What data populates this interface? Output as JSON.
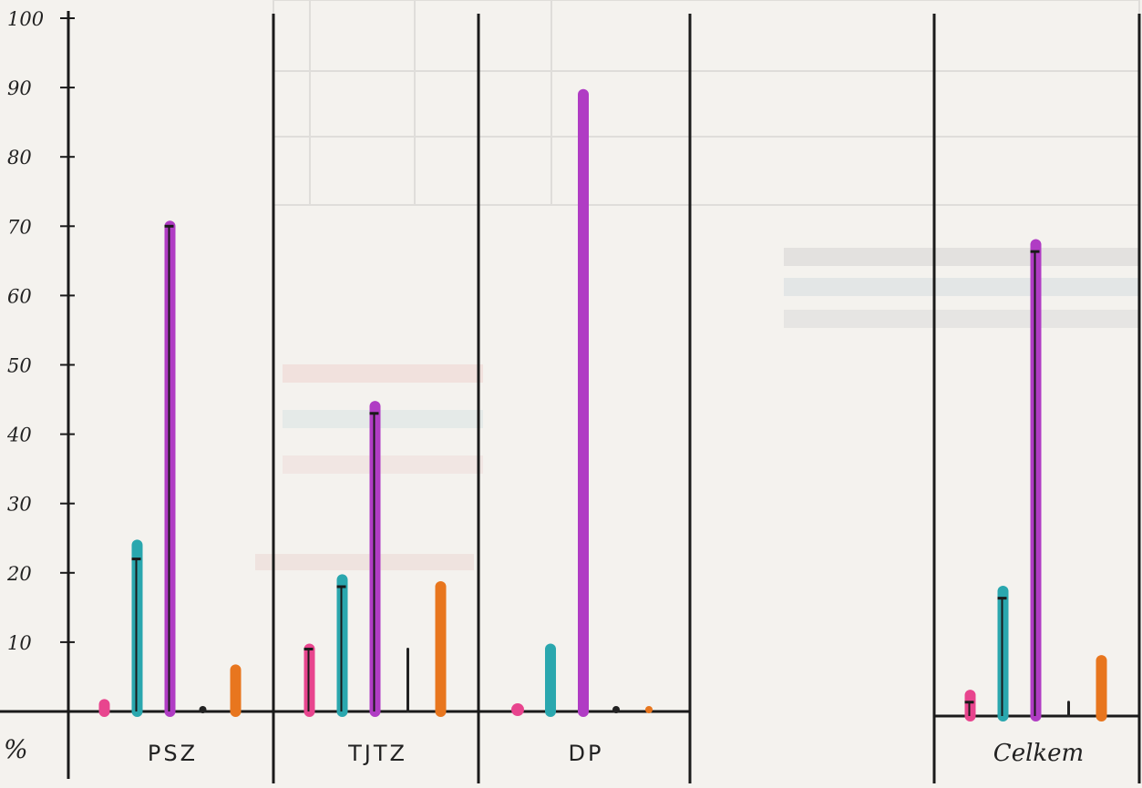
{
  "chart_data": {
    "type": "bar",
    "title": "",
    "xlabel": "",
    "ylabel": "%",
    "ylim": [
      0,
      100
    ],
    "yticks": [
      "100",
      "90",
      "80",
      "70",
      "60",
      "50",
      "40",
      "30",
      "20",
      "10"
    ],
    "categories": [
      "PSZ",
      "TJTZ",
      "DP",
      "Celkem"
    ],
    "series": [
      {
        "color": "#e8458e",
        "values": [
          1,
          9,
          0,
          3
        ]
      },
      {
        "color": "#2aa7ae",
        "values": [
          24,
          19,
          9,
          18
        ]
      },
      {
        "color": "#b03cc4",
        "values": [
          70,
          44,
          89,
          68
        ]
      },
      {
        "color": "#222222",
        "values": [
          0,
          9,
          0,
          2
        ]
      },
      {
        "color": "#e8761e",
        "values": [
          6,
          18,
          0,
          8
        ]
      }
    ],
    "error_bars": [
      [
        null,
        22,
        70,
        null,
        null
      ],
      [
        9,
        18,
        43,
        null,
        null
      ],
      [
        null,
        null,
        null,
        null,
        null
      ],
      [
        2,
        17,
        67,
        null,
        null
      ]
    ],
    "grid": false,
    "legend": "none"
  }
}
